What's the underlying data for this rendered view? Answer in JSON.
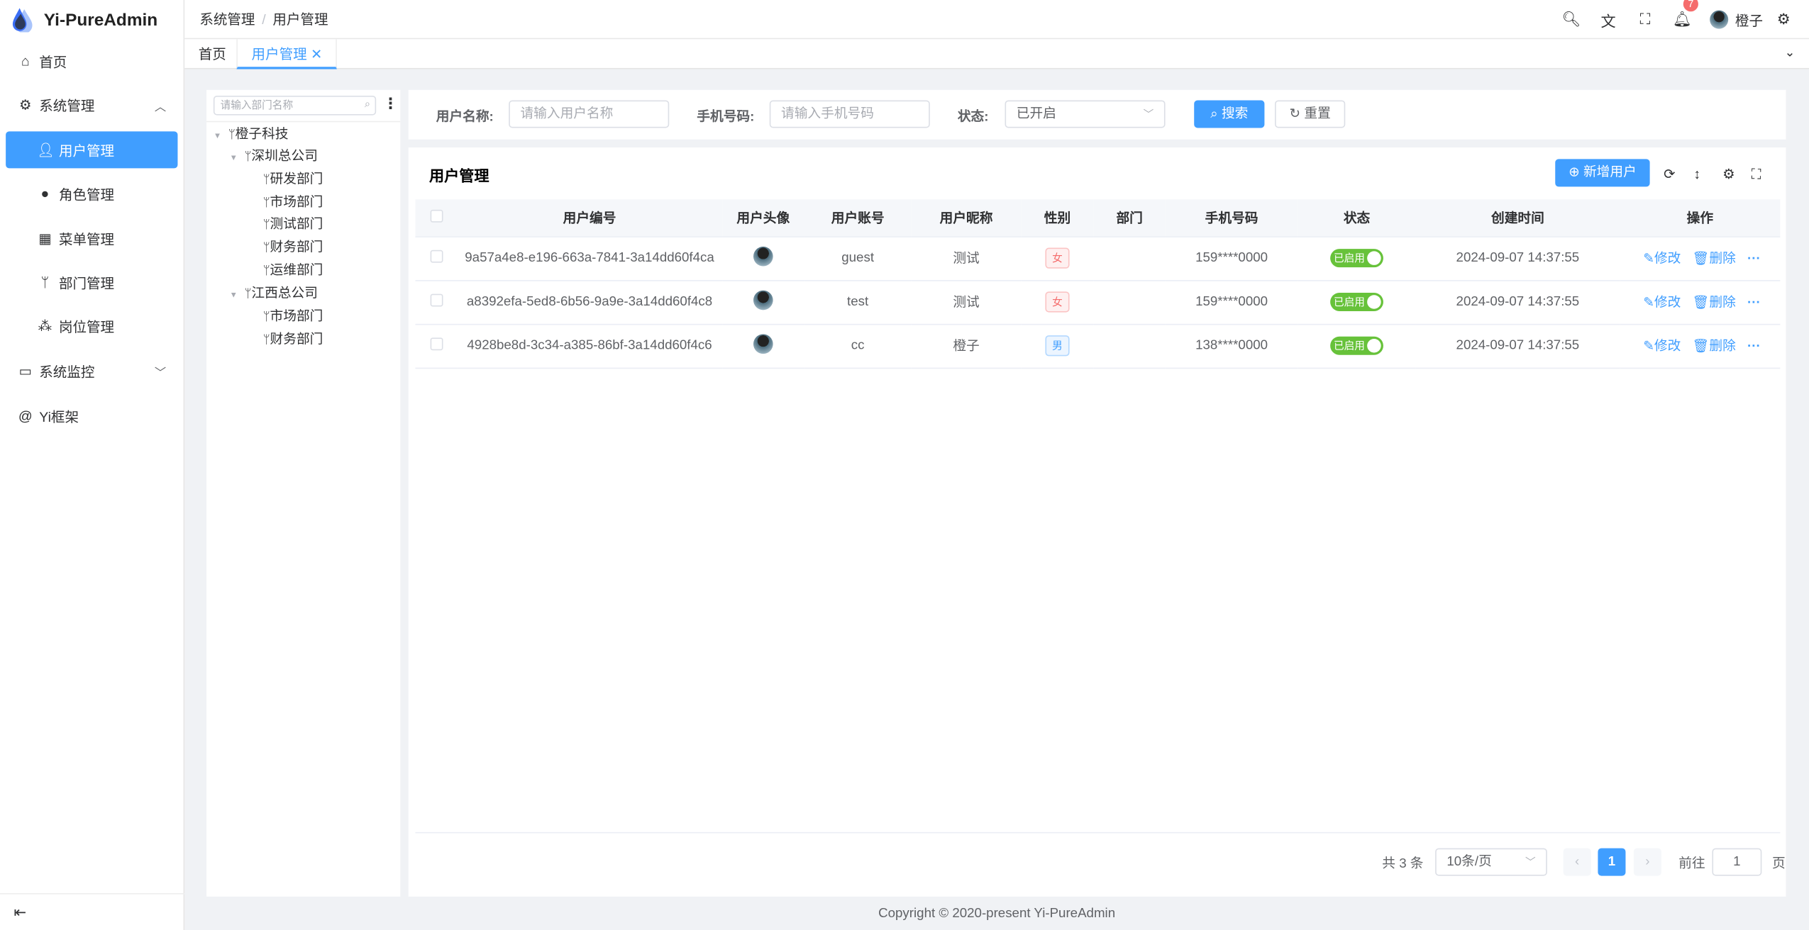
{
  "app": {
    "title": "Yi-PureAdmin"
  },
  "sidebar": {
    "items": [
      {
        "label": "首页",
        "icon": "home-icon"
      },
      {
        "label": "系统管理",
        "icon": "gear-icon",
        "expanded": true
      },
      {
        "label": "用户管理",
        "icon": "user-icon",
        "active": true
      },
      {
        "label": "角色管理",
        "icon": "role-icon"
      },
      {
        "label": "菜单管理",
        "icon": "grid-icon"
      },
      {
        "label": "部门管理",
        "icon": "fork-icon"
      },
      {
        "label": "岗位管理",
        "icon": "org-icon"
      },
      {
        "label": "系统监控",
        "icon": "monitor-icon"
      },
      {
        "label": "Yi框架",
        "icon": "at-icon"
      }
    ]
  },
  "header": {
    "breadcrumb": [
      "系统管理",
      "用户管理"
    ],
    "breadcrumb_sep": "/",
    "notification_count": "7",
    "username": "橙子"
  },
  "tabs": [
    {
      "label": "首页"
    },
    {
      "label": "用户管理",
      "active": true
    }
  ],
  "tree": {
    "placeholder": "请输入部门名称",
    "nodes": [
      {
        "label": "橙子科技",
        "level": 0
      },
      {
        "label": "深圳总公司",
        "level": 1
      },
      {
        "label": "研发部门",
        "level": 2
      },
      {
        "label": "市场部门",
        "level": 2
      },
      {
        "label": "测试部门",
        "level": 2
      },
      {
        "label": "财务部门",
        "level": 2
      },
      {
        "label": "运维部门",
        "level": 2
      },
      {
        "label": "江西总公司",
        "level": 1
      },
      {
        "label": "市场部门",
        "level": 2
      },
      {
        "label": "财务部门",
        "level": 2
      }
    ]
  },
  "search": {
    "username_label": "用户名称:",
    "username_placeholder": "请输入用户名称",
    "phone_label": "手机号码:",
    "phone_placeholder": "请输入手机号码",
    "status_label": "状态:",
    "status_value": "已开启",
    "search_btn": "搜索",
    "reset_btn": "重置"
  },
  "table": {
    "title": "用户管理",
    "add_btn": "新增用户",
    "columns": [
      "用户编号",
      "用户头像",
      "用户账号",
      "用户昵称",
      "性别",
      "部门",
      "手机号码",
      "状态",
      "创建时间",
      "操作"
    ],
    "rows": [
      {
        "id": "9a57a4e8-e196-663a-7841-3a14dd60f4ca",
        "account": "guest",
        "nickname": "测试",
        "gender": "女",
        "dept": "",
        "phone": "159****0000",
        "status": "已启用",
        "created": "2024-09-07 14:37:55"
      },
      {
        "id": "a8392efa-5ed8-6b56-9a9e-3a14dd60f4c8",
        "account": "test",
        "nickname": "测试",
        "gender": "女",
        "dept": "",
        "phone": "159****0000",
        "status": "已启用",
        "created": "2024-09-07 14:37:55"
      },
      {
        "id": "4928be8d-3c34-a385-86bf-3a14dd60f4c6",
        "account": "cc",
        "nickname": "橙子",
        "gender": "男",
        "dept": "",
        "phone": "138****0000",
        "status": "已启用",
        "created": "2024-09-07 14:37:55"
      }
    ],
    "edit_label": "修改",
    "delete_label": "删除",
    "more_label": "···"
  },
  "pagination": {
    "total": "共 3 条",
    "page_size": "10条/页",
    "current": "1",
    "goto_label": "前往",
    "goto_value": "1",
    "page_suffix": "页"
  },
  "footer": {
    "copyright": "Copyright © 2020-present Yi-PureAdmin"
  },
  "colors": {
    "primary": "#409eff",
    "success": "#67c23a",
    "danger": "#f56c6c"
  }
}
